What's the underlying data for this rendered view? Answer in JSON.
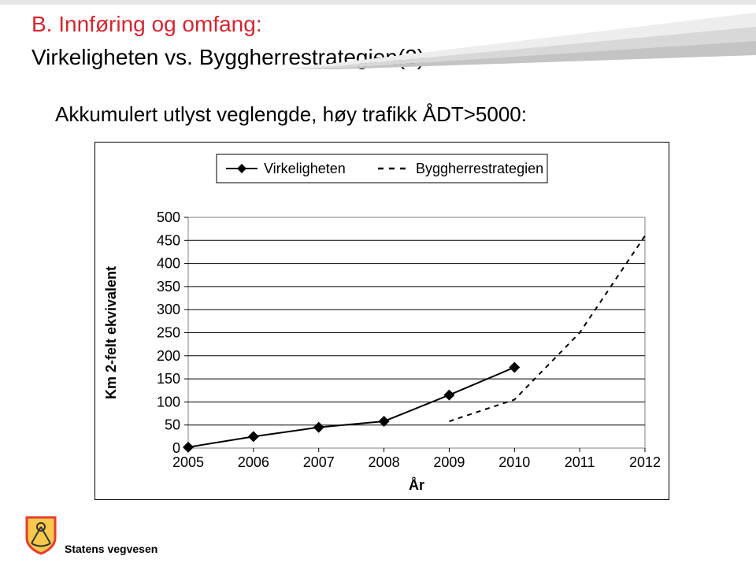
{
  "title_line1": "B. Innføring og omfang:",
  "title_line2": "Virkeligheten vs. Byggherrestrategien(2)",
  "subtitle": "Akkumulert utlyst veglengde, høy trafikk ÅDT>5000:",
  "footer_text": "Statens vegvesen",
  "colors": {
    "accent": "#d22630",
    "text": "#000000",
    "stripe_light": "#ededed",
    "stripe_med": "#d8d8d8",
    "stripe_dark": "#c4c4c4",
    "grid": "#000000",
    "plot_border": "#808080"
  },
  "chart": {
    "type": "line",
    "x_categories": [
      "2005",
      "2006",
      "2007",
      "2008",
      "2009",
      "2010",
      "2011",
      "2012"
    ],
    "xlabel": "År",
    "ylabel": "Km 2-felt ekvivalent",
    "ylim": [
      0,
      500
    ],
    "ytick_step": 50,
    "label_fontsize": 18,
    "tick_fontsize": 18,
    "legend": {
      "items": [
        {
          "label": "Virkeligheten",
          "style": "solid",
          "marker": "diamond",
          "color": "#000000"
        },
        {
          "label": "Byggherrestrategien",
          "style": "dashed",
          "color": "#000000"
        }
      ],
      "position": "top",
      "fontsize": 18
    },
    "series": {
      "virkeligheten": {
        "x": [
          "2005",
          "2006",
          "2007",
          "2008",
          "2009",
          "2010"
        ],
        "y": [
          2,
          25,
          45,
          58,
          115,
          175
        ],
        "color": "#000000",
        "marker": "diamond",
        "line_width": 2
      },
      "byggherrestrategien": {
        "x": [
          "2009",
          "2010",
          "2011",
          "2012"
        ],
        "y": [
          58,
          105,
          250,
          460
        ],
        "color": "#000000",
        "dash": "6,6",
        "line_width": 2
      }
    },
    "background_color": "#ffffff"
  }
}
